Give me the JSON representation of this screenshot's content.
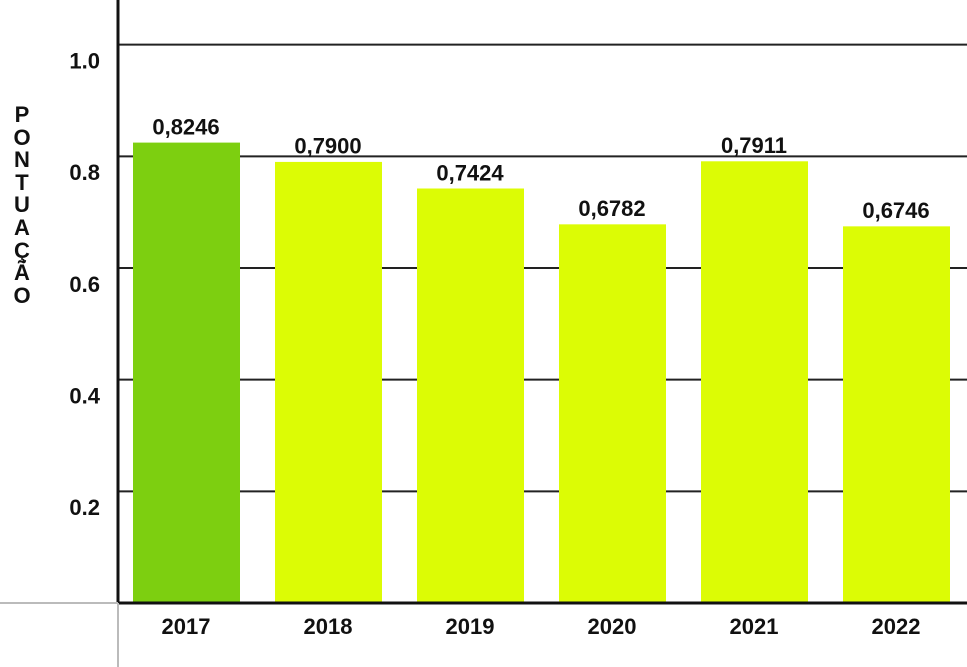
{
  "chart_data": {
    "type": "bar",
    "y_label": "PONTUAÇÃO",
    "categories": [
      "2017",
      "2018",
      "2019",
      "2020",
      "2021",
      "2022"
    ],
    "values": [
      0.8246,
      0.79,
      0.7424,
      0.6782,
      0.7911,
      0.6746
    ],
    "value_labels": [
      "0,8246",
      "0,7900",
      "0,7424",
      "0,6782",
      "0,7911",
      "0,6746"
    ],
    "colors": [
      "#7dcf10",
      "#dcfc05",
      "#dcfc05",
      "#dcfc05",
      "#dcfc05",
      "#dcfc05"
    ],
    "ylim": [
      0,
      1.08
    ],
    "yticks": [
      0.2,
      0.4,
      0.6,
      0.8,
      {
        "value": 1,
        "label": "1.0"
      }
    ],
    "grid": true
  }
}
